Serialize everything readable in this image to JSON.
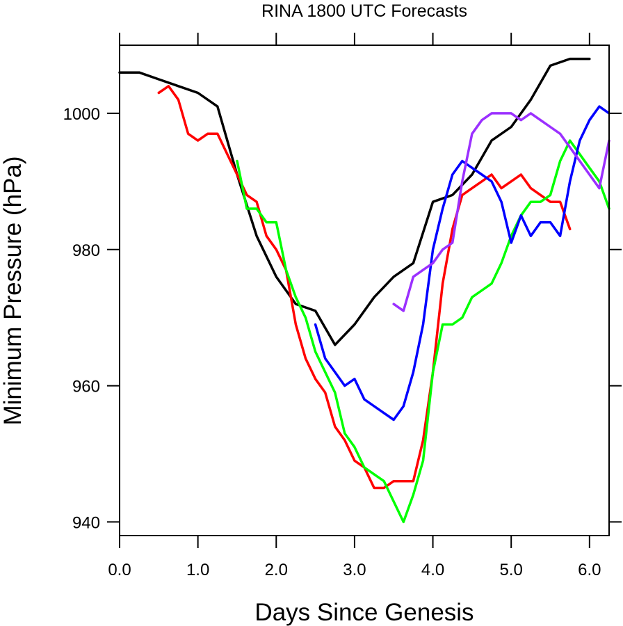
{
  "chart_data": {
    "type": "line",
    "title": "RINA 1800 UTC Forecasts",
    "xlabel": "Days Since Genesis",
    "ylabel": "Minimum Pressure (hPa)",
    "xlim": [
      0,
      6.25
    ],
    "ylim": [
      938,
      1010
    ],
    "xticks": [
      0,
      1,
      2,
      3,
      4,
      5,
      6
    ],
    "xtick_labels": [
      "0.0",
      "1.0",
      "2.0",
      "3.0",
      "4.0",
      "5.0",
      "6.0"
    ],
    "yticks": [
      940,
      960,
      980,
      1000
    ],
    "ytick_labels": [
      "940",
      "960",
      "980",
      "1000"
    ],
    "grid": false,
    "series": [
      {
        "color": "#000000",
        "x": [
          0,
          0.25,
          0.5,
          0.75,
          1.0,
          1.25,
          1.5,
          1.75,
          2.0,
          2.25,
          2.5,
          2.75,
          3.0,
          3.25,
          3.5,
          3.75,
          4.0,
          4.25,
          4.5,
          4.75,
          5.0,
          5.25,
          5.5,
          5.75,
          6.0
        ],
        "y": [
          1006,
          1006,
          1005,
          1004,
          1003,
          1001,
          991,
          982,
          976,
          972,
          971,
          966,
          969,
          973,
          976,
          978,
          987,
          988,
          991,
          996,
          998,
          1002,
          1007,
          1008,
          1008
        ]
      },
      {
        "color": "#ff0000",
        "x": [
          0.5,
          0.625,
          0.75,
          0.875,
          1.0,
          1.125,
          1.25,
          1.375,
          1.5,
          1.625,
          1.75,
          1.875,
          2.0,
          2.125,
          2.25,
          2.375,
          2.5,
          2.625,
          2.75,
          2.875,
          3.0,
          3.125,
          3.25,
          3.375,
          3.5,
          3.625,
          3.75,
          3.875,
          4.0,
          4.125,
          4.25,
          4.375,
          4.5,
          4.625,
          4.75,
          4.875,
          5.0,
          5.125,
          5.25,
          5.375,
          5.5,
          5.625,
          5.75
        ],
        "y": [
          1003,
          1004,
          1002,
          997,
          996,
          997,
          997,
          994,
          991,
          988,
          987,
          982,
          980,
          977,
          969,
          964,
          961,
          959,
          954,
          952,
          949,
          948,
          945,
          945,
          946,
          946,
          946,
          952,
          962,
          975,
          983,
          988,
          989,
          990,
          991,
          989,
          990,
          991,
          989,
          988,
          987,
          987,
          983
        ]
      },
      {
        "color": "#00ff00",
        "x": [
          1.5,
          1.625,
          1.75,
          1.875,
          2.0,
          2.125,
          2.25,
          2.375,
          2.5,
          2.625,
          2.75,
          2.875,
          3.0,
          3.125,
          3.25,
          3.375,
          3.5,
          3.625,
          3.75,
          3.875,
          4.0,
          4.125,
          4.25,
          4.375,
          4.5,
          4.625,
          4.75,
          4.875,
          5.0,
          5.125,
          5.25,
          5.375,
          5.5,
          5.625,
          5.75,
          5.875,
          6.0,
          6.125,
          6.25
        ],
        "y": [
          993,
          986,
          986,
          984,
          984,
          977,
          973,
          970,
          965,
          962,
          959,
          953,
          951,
          948,
          947,
          946,
          943,
          940,
          944,
          949,
          962,
          969,
          969,
          970,
          973,
          974,
          975,
          978,
          982,
          985,
          987,
          987,
          988,
          993,
          996,
          994,
          992,
          990,
          986
        ]
      },
      {
        "color": "#0000ff",
        "x": [
          2.5,
          2.625,
          2.75,
          2.875,
          3.0,
          3.125,
          3.25,
          3.375,
          3.5,
          3.625,
          3.75,
          3.875,
          4.0,
          4.125,
          4.25,
          4.375,
          4.5,
          4.625,
          4.75,
          4.875,
          5.0,
          5.125,
          5.25,
          5.375,
          5.5,
          5.625,
          5.75,
          5.875,
          6.0,
          6.125,
          6.25
        ],
        "y": [
          969,
          964,
          962,
          960,
          961,
          958,
          957,
          956,
          955,
          957,
          962,
          969,
          980,
          986,
          991,
          993,
          992,
          991,
          990,
          987,
          981,
          985,
          982,
          984,
          984,
          982,
          990,
          996,
          999,
          1001,
          1000
        ]
      },
      {
        "color": "#9b30ff",
        "x": [
          3.5,
          3.625,
          3.75,
          3.875,
          4.0,
          4.125,
          4.25,
          4.375,
          4.5,
          4.625,
          4.75,
          4.875,
          5.0,
          5.125,
          5.25,
          5.375,
          5.5,
          5.625,
          5.75,
          5.875,
          6.0,
          6.125,
          6.25
        ],
        "y": [
          972,
          971,
          976,
          977,
          978,
          980,
          981,
          990,
          997,
          999,
          1000,
          1000,
          1000,
          999,
          1000,
          999,
          998,
          997,
          995,
          993,
          991,
          989,
          996
        ]
      }
    ]
  }
}
